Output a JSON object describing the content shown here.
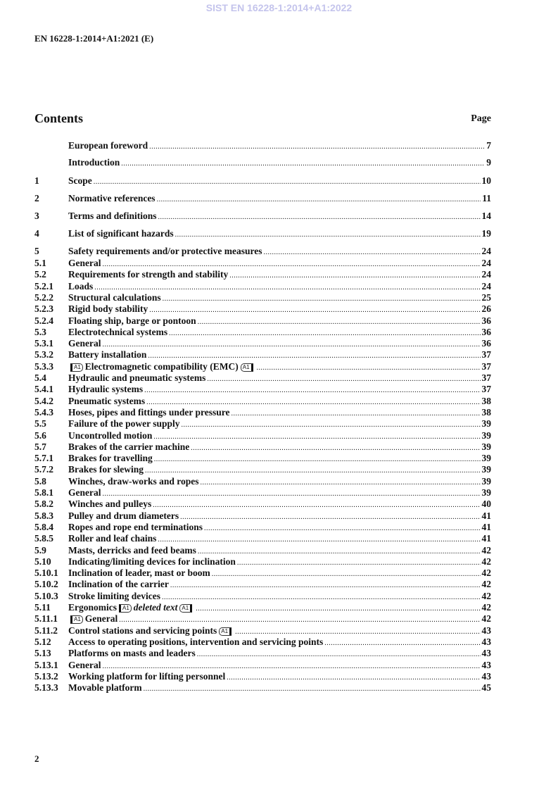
{
  "watermark": "SIST EN 16228-1:2014+A1:2022",
  "header": "EN 16228-1:2014+A1:2021 (E)",
  "contents_title": "Contents",
  "page_label": "Page",
  "marker_label": "A1",
  "entries": [
    {
      "num": "",
      "segs": [
        {
          "t": "European foreword"
        }
      ],
      "page": "7"
    },
    {
      "num": "",
      "segs": [
        {
          "t": "Introduction"
        }
      ],
      "page": "9"
    },
    {
      "num": "1",
      "segs": [
        {
          "t": "Scope"
        }
      ],
      "page": "10"
    },
    {
      "num": "2",
      "segs": [
        {
          "t": "Normative references"
        }
      ],
      "page": "11"
    },
    {
      "num": "3",
      "segs": [
        {
          "t": "Terms and definitions"
        }
      ],
      "page": "14"
    },
    {
      "num": "4",
      "segs": [
        {
          "t": "List of significant hazards"
        }
      ],
      "page": "19"
    },
    {
      "num": "5",
      "segs": [
        {
          "t": "Safety requirements and/or protective measures"
        }
      ],
      "page": "24"
    },
    {
      "num": "5.1",
      "segs": [
        {
          "t": "General"
        }
      ],
      "page": "24"
    },
    {
      "num": "5.2",
      "segs": [
        {
          "t": "Requirements for strength and stability"
        }
      ],
      "page": "24"
    },
    {
      "num": "5.2.1",
      "segs": [
        {
          "t": "Loads"
        }
      ],
      "page": "24"
    },
    {
      "num": "5.2.2",
      "segs": [
        {
          "t": "Structural calculations"
        }
      ],
      "page": "25"
    },
    {
      "num": "5.2.3",
      "segs": [
        {
          "t": "Rigid body stability"
        }
      ],
      "page": "26"
    },
    {
      "num": "5.2.4",
      "segs": [
        {
          "t": "Floating ship, barge or pontoon"
        }
      ],
      "page": "36"
    },
    {
      "num": "5.3",
      "segs": [
        {
          "t": "Electrotechnical systems"
        }
      ],
      "page": "36"
    },
    {
      "num": "5.3.1",
      "segs": [
        {
          "t": "General"
        }
      ],
      "page": "36"
    },
    {
      "num": "5.3.2",
      "segs": [
        {
          "t": "Battery installation"
        }
      ],
      "page": "37"
    },
    {
      "num": "5.3.3",
      "segs": [
        {
          "m": "start"
        },
        {
          "t": "Electromagnetic compatibility (EMC)"
        },
        {
          "m": "end"
        }
      ],
      "page": "37"
    },
    {
      "num": "5.4",
      "segs": [
        {
          "t": "Hydraulic and pneumatic systems"
        }
      ],
      "page": "37"
    },
    {
      "num": "5.4.1",
      "segs": [
        {
          "t": "Hydraulic systems"
        }
      ],
      "page": "37"
    },
    {
      "num": "5.4.2",
      "segs": [
        {
          "t": "Pneumatic systems"
        }
      ],
      "page": "38"
    },
    {
      "num": "5.4.3",
      "segs": [
        {
          "t": "Hoses, pipes and fittings under pressure"
        }
      ],
      "page": "38"
    },
    {
      "num": "5.5",
      "segs": [
        {
          "t": "Failure of the power supply"
        }
      ],
      "page": "39"
    },
    {
      "num": "5.6",
      "segs": [
        {
          "t": "Uncontrolled motion"
        }
      ],
      "page": "39"
    },
    {
      "num": "5.7",
      "segs": [
        {
          "t": "Brakes of the carrier machine"
        }
      ],
      "page": "39"
    },
    {
      "num": "5.7.1",
      "segs": [
        {
          "t": "Brakes for travelling"
        }
      ],
      "page": "39"
    },
    {
      "num": "5.7.2",
      "segs": [
        {
          "t": "Brakes for slewing"
        }
      ],
      "page": "39"
    },
    {
      "num": "5.8",
      "segs": [
        {
          "t": "Winches, draw-works and ropes"
        }
      ],
      "page": "39"
    },
    {
      "num": "5.8.1",
      "segs": [
        {
          "t": "General"
        }
      ],
      "page": "39"
    },
    {
      "num": "5.8.2",
      "segs": [
        {
          "t": "Winches and pulleys"
        }
      ],
      "page": "40"
    },
    {
      "num": "5.8.3",
      "segs": [
        {
          "t": "Pulley and drum diameters"
        }
      ],
      "page": "41"
    },
    {
      "num": "5.8.4",
      "segs": [
        {
          "t": "Ropes and rope end terminations"
        }
      ],
      "page": "41"
    },
    {
      "num": "5.8.5",
      "segs": [
        {
          "t": "Roller and leaf chains"
        }
      ],
      "page": "41"
    },
    {
      "num": "5.9",
      "segs": [
        {
          "t": "Masts, derricks and feed beams"
        }
      ],
      "page": "42"
    },
    {
      "num": "5.10",
      "segs": [
        {
          "t": "Indicating/limiting devices for inclination"
        }
      ],
      "page": "42"
    },
    {
      "num": "5.10.1",
      "segs": [
        {
          "t": "Inclination of leader, mast or boom"
        }
      ],
      "page": "42"
    },
    {
      "num": "5.10.2",
      "segs": [
        {
          "t": "Inclination of the carrier"
        }
      ],
      "page": "42"
    },
    {
      "num": "5.10.3",
      "segs": [
        {
          "t": "Stroke limiting devices"
        }
      ],
      "page": "42"
    },
    {
      "num": "5.11",
      "segs": [
        {
          "t": "Ergonomics"
        },
        {
          "m": "start"
        },
        {
          "t": "deleted text",
          "i": true
        },
        {
          "m": "end"
        }
      ],
      "page": "42"
    },
    {
      "num": "5.11.1",
      "segs": [
        {
          "m": "start"
        },
        {
          "t": "General"
        }
      ],
      "page": "42"
    },
    {
      "num": "5.11.2",
      "segs": [
        {
          "t": "Control stations and servicing points"
        },
        {
          "m": "end"
        }
      ],
      "page": "43"
    },
    {
      "num": "5.12",
      "segs": [
        {
          "t": "Access to operating positions, intervention and servicing points"
        }
      ],
      "page": "43"
    },
    {
      "num": "5.13",
      "segs": [
        {
          "t": "Platforms on masts and leaders"
        }
      ],
      "page": "43"
    },
    {
      "num": "5.13.1",
      "segs": [
        {
          "t": "General"
        }
      ],
      "page": "43"
    },
    {
      "num": "5.13.2",
      "segs": [
        {
          "t": "Working platform for lifting personnel"
        }
      ],
      "page": "43"
    },
    {
      "num": "5.13.3",
      "segs": [
        {
          "t": "Movable platform"
        }
      ],
      "page": "45"
    }
  ],
  "page_number": "2"
}
